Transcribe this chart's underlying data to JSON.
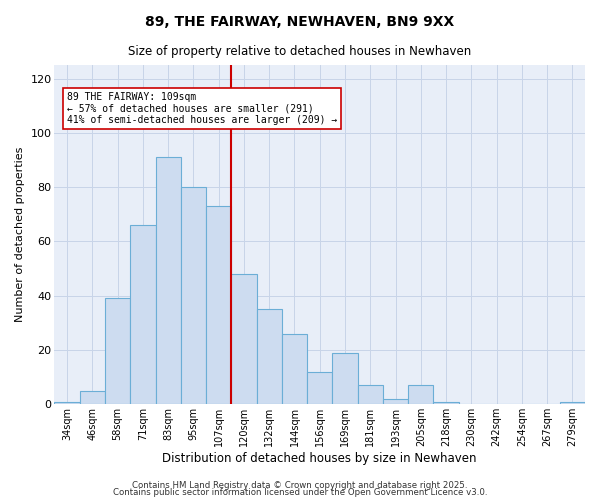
{
  "title": "89, THE FAIRWAY, NEWHAVEN, BN9 9XX",
  "subtitle": "Size of property relative to detached houses in Newhaven",
  "xlabel": "Distribution of detached houses by size in Newhaven",
  "ylabel": "Number of detached properties",
  "categories": [
    "34sqm",
    "46sqm",
    "58sqm",
    "71sqm",
    "83sqm",
    "95sqm",
    "107sqm",
    "120sqm",
    "132sqm",
    "144sqm",
    "156sqm",
    "169sqm",
    "181sqm",
    "193sqm",
    "205sqm",
    "218sqm",
    "230sqm",
    "242sqm",
    "254sqm",
    "267sqm",
    "279sqm"
  ],
  "values": [
    1,
    5,
    39,
    66,
    91,
    80,
    73,
    48,
    35,
    26,
    12,
    19,
    7,
    2,
    7,
    1,
    0,
    0,
    0,
    0,
    1
  ],
  "bar_color": "#cddcf0",
  "bar_edge_color": "#6baed6",
  "highlight_index": 6,
  "highlight_line_color": "#cc0000",
  "annotation_text": "89 THE FAIRWAY: 109sqm\n← 57% of detached houses are smaller (291)\n41% of semi-detached houses are larger (209) →",
  "annotation_box_color": "#ffffff",
  "annotation_box_edge_color": "#cc0000",
  "ylim": [
    0,
    125
  ],
  "yticks": [
    0,
    20,
    40,
    60,
    80,
    100,
    120
  ],
  "plot_bg_color": "#e8eef8",
  "fig_bg_color": "#ffffff",
  "grid_color": "#c8d4e8",
  "footer_line1": "Contains HM Land Registry data © Crown copyright and database right 2025.",
  "footer_line2": "Contains public sector information licensed under the Open Government Licence v3.0."
}
